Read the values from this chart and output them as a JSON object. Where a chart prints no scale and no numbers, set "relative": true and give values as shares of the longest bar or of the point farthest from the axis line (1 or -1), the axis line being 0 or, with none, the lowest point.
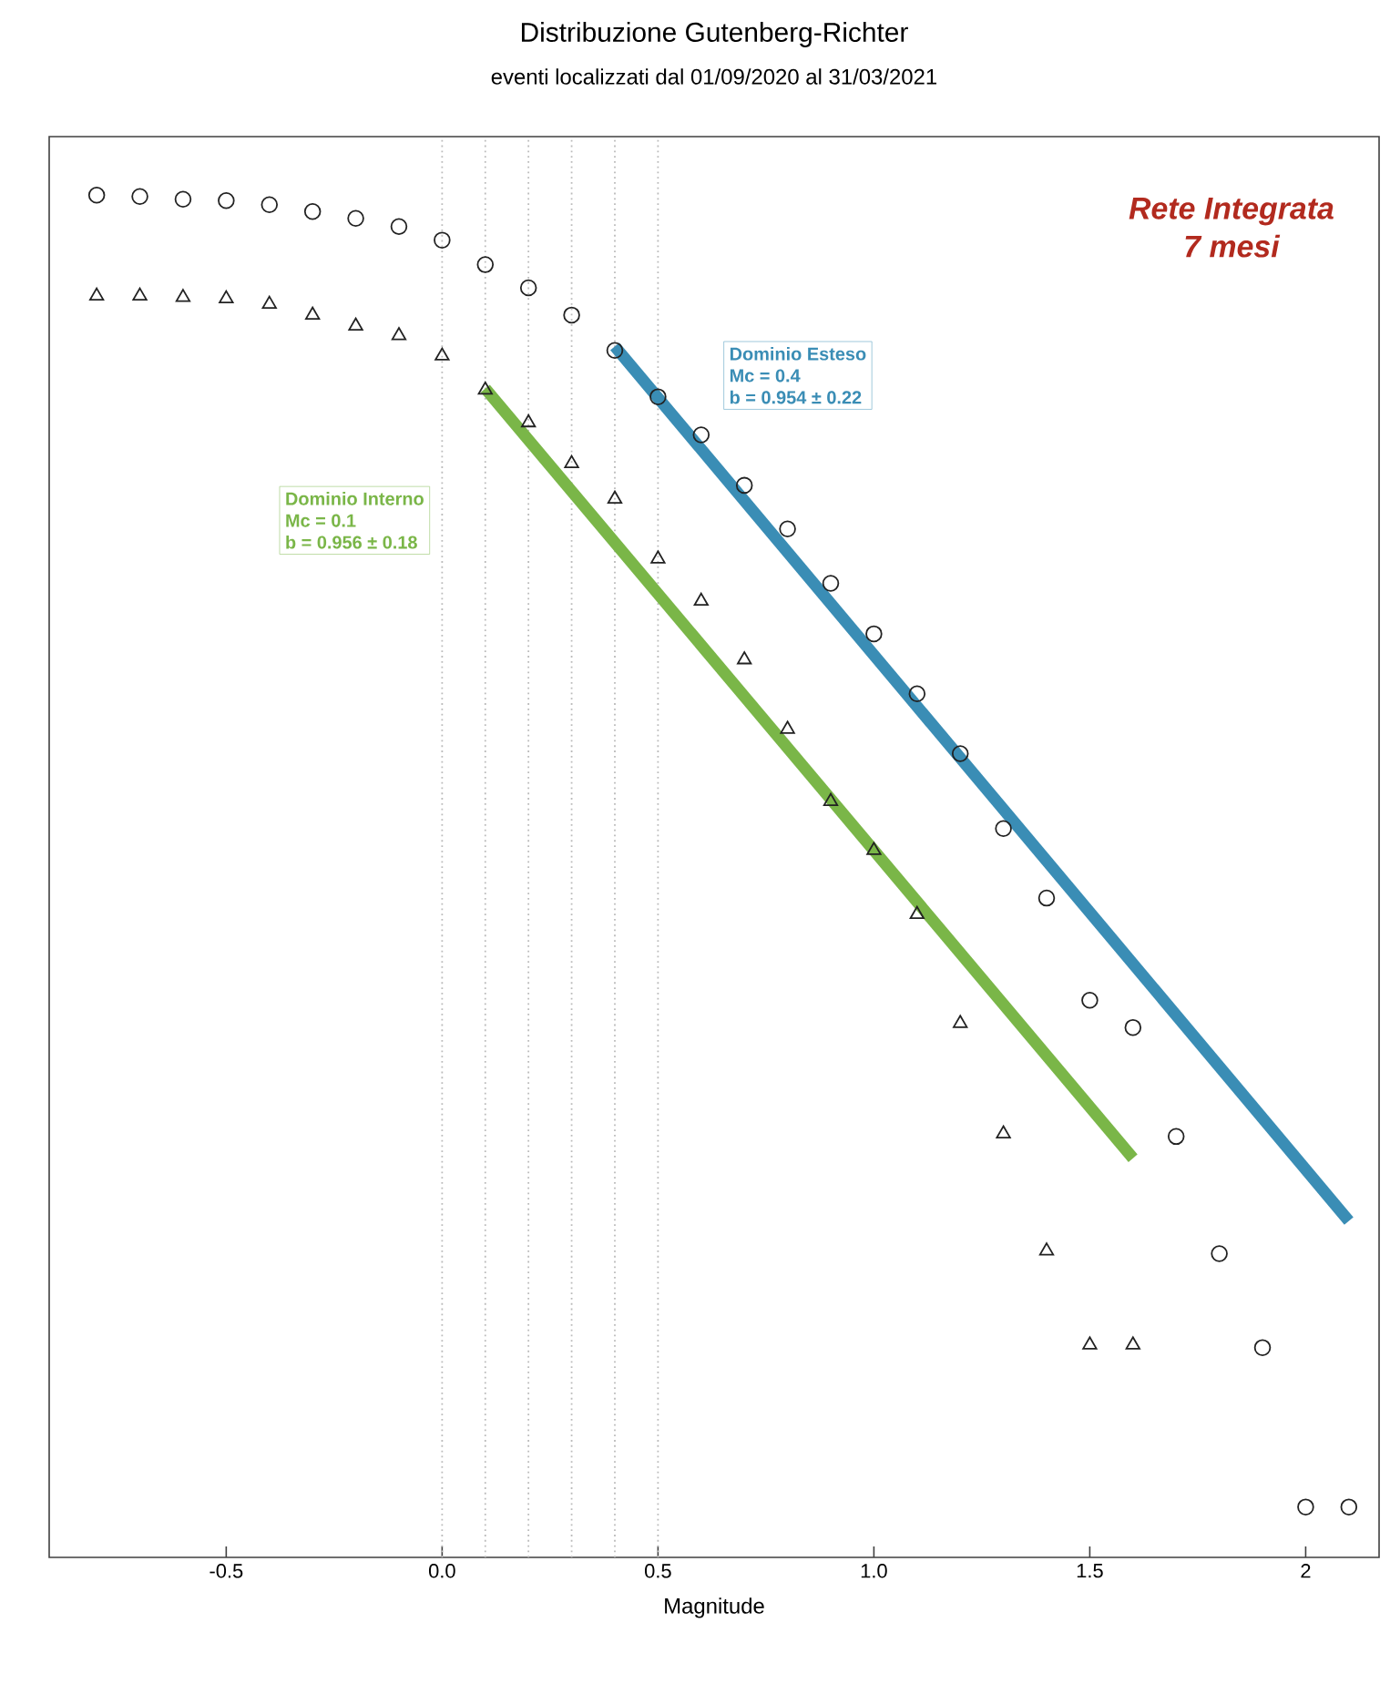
{
  "chart_data": {
    "type": "scatter",
    "title": "Distribuzione Gutenberg-Richter",
    "subtitle": "eventi localizzati dal 01/09/2020 al 31/03/2021",
    "xlabel": "Magnitude",
    "relative": true,
    "grid": false,
    "xlim": [
      -0.91,
      2.17
    ],
    "xticks": [
      -0.5,
      {
        "value": 0,
        "label": "0.0"
      },
      0.5,
      {
        "value": 1,
        "label": "1.0"
      },
      1.5,
      2
    ],
    "ref_lines": [
      {
        "axis": "x",
        "value": 0,
        "color": "#bbbbbb",
        "line_style": "dotted"
      },
      {
        "axis": "x",
        "value": 0.1,
        "color": "#bbbbbb",
        "line_style": "dotted"
      },
      {
        "axis": "x",
        "value": 0.2,
        "color": "#bbbbbb",
        "line_style": "dotted"
      },
      {
        "axis": "x",
        "value": 0.3,
        "color": "#bbbbbb",
        "line_style": "dotted"
      },
      {
        "axis": "x",
        "value": 0.4,
        "color": "#bbbbbb",
        "line_style": "dotted"
      },
      {
        "axis": "x",
        "value": 0.5,
        "color": "#bbbbbb",
        "line_style": "dotted"
      }
    ],
    "annotations": [
      "Rete Integrata",
      "7 mesi",
      "Mc = 0.1",
      "b = 0.956 ± 0.18",
      "Mc = 0.4",
      "b = 0.954 ± 0.22"
    ],
    "series": [
      {
        "marker": "circle",
        "color": "#222222",
        "x": [
          -0.8,
          -0.7,
          -0.6,
          -0.5,
          -0.4,
          -0.3,
          -0.2,
          -0.1,
          0,
          0.1,
          0.2,
          0.3,
          0.4,
          0.5,
          0.6,
          0.7,
          0.8,
          0.9,
          1.0,
          1.1,
          1.2,
          1.3,
          1.4,
          1.5,
          1.6,
          1.7,
          1.8,
          1.9,
          2.0,
          2.1
        ],
        "values": [
          1,
          0.999,
          0.997,
          0.996,
          0.993,
          0.988,
          0.983,
          0.977,
          0.967,
          0.949,
          0.932,
          0.912,
          0.886,
          0.852,
          0.824,
          0.787,
          0.755,
          0.715,
          0.678,
          0.634,
          0.59,
          0.535,
          0.484,
          0.409,
          0.389,
          0.309,
          0.223,
          0.154,
          0.037,
          0.037
        ]
      },
      {
        "marker": "triangle",
        "color": "#222222",
        "x": [
          -0.8,
          -0.7,
          -0.6,
          -0.5,
          -0.4,
          -0.3,
          -0.2,
          -0.1,
          0,
          0.1,
          0.2,
          0.3,
          0.4,
          0.5,
          0.6,
          0.7,
          0.8,
          0.9,
          1.0,
          1.1,
          1.2,
          1.3,
          1.4,
          1.5,
          1.6
        ],
        "values": [
          0.926,
          0.926,
          0.925,
          0.924,
          0.92,
          0.912,
          0.904,
          0.897,
          0.882,
          0.857,
          0.833,
          0.803,
          0.777,
          0.733,
          0.702,
          0.659,
          0.608,
          0.555,
          0.519,
          0.472,
          0.392,
          0.311,
          0.225,
          0.156,
          0.156
        ]
      },
      {
        "type": "line",
        "name": "Dominio Interno",
        "marker": "none",
        "line_style": "solid",
        "color": "#7ab648",
        "x": [
          0.1,
          1.6
        ],
        "values": [
          0.858,
          0.293
        ]
      },
      {
        "type": "line",
        "name": "Dominio Esteso",
        "marker": "none",
        "line_style": "solid",
        "color": "#3a8db5",
        "x": [
          0.4,
          2.1
        ],
        "values": [
          0.889,
          0.247
        ]
      }
    ]
  }
}
